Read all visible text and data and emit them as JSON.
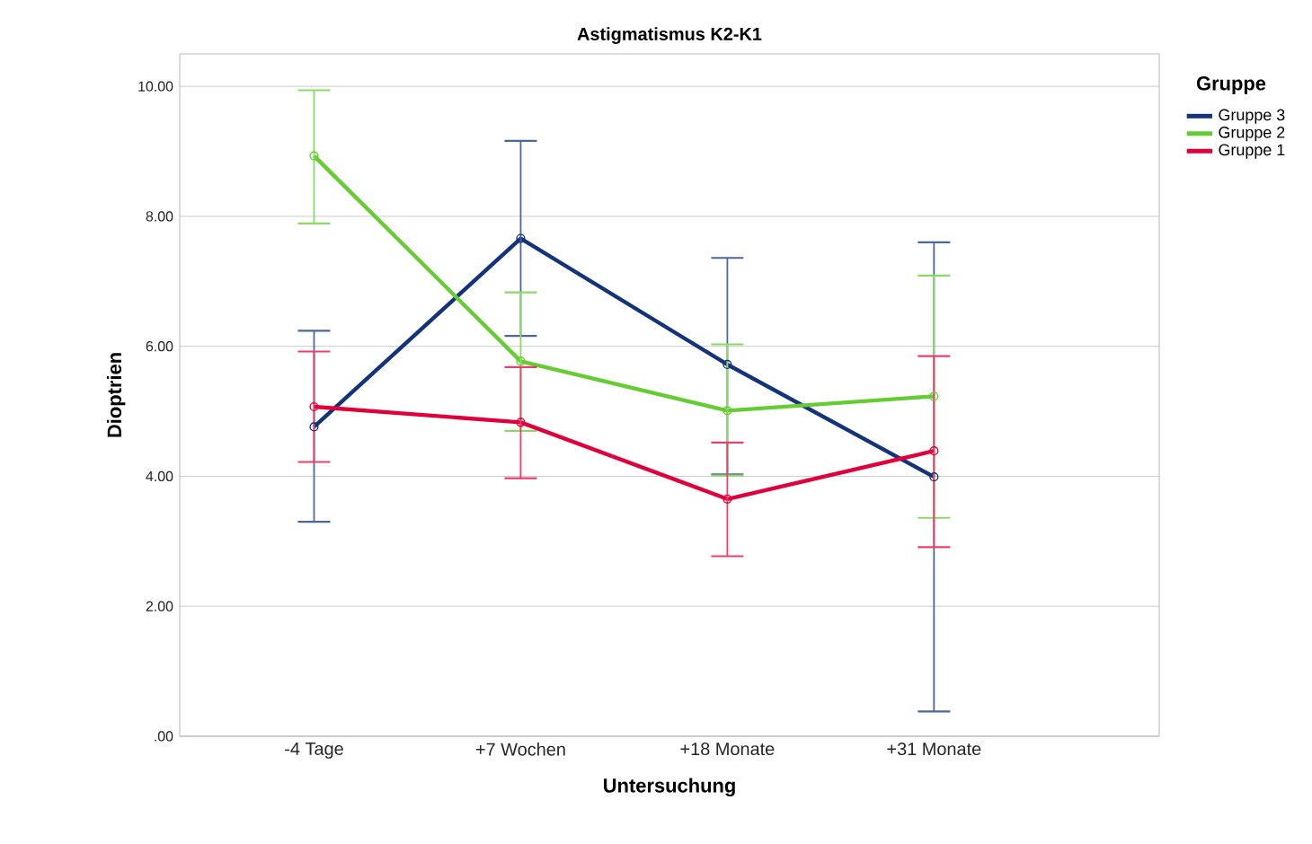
{
  "chart_data": {
    "type": "line",
    "title": "Astigmatismus K2-K1",
    "xlabel": "Untersuchung",
    "ylabel": "Dioptrien",
    "legend_title": "Gruppe",
    "categories": [
      "-4 Tage",
      "+7 Wochen",
      "+18 Monate",
      "+31 Monate"
    ],
    "series": [
      {
        "name": "Gruppe 3",
        "color": "#14337a",
        "values": [
          4.76,
          7.66,
          5.72,
          3.99
        ],
        "errors": [
          [
            3.3,
            6.24
          ],
          [
            6.16,
            9.16
          ],
          [
            4.03,
            7.36
          ],
          [
            0.38,
            7.6
          ]
        ]
      },
      {
        "name": "Gruppe 2",
        "color": "#66cc33",
        "values": [
          8.93,
          5.77,
          5.01,
          5.23
        ],
        "errors": [
          [
            7.89,
            9.94
          ],
          [
            4.7,
            6.83
          ],
          [
            4.01,
            6.03
          ],
          [
            3.36,
            7.09
          ]
        ]
      },
      {
        "name": "Gruppe 1",
        "color": "#e0003c",
        "values": [
          5.07,
          4.83,
          3.65,
          4.39
        ],
        "errors": [
          [
            4.22,
            5.92
          ],
          [
            3.97,
            5.68
          ],
          [
            2.77,
            4.52
          ],
          [
            2.91,
            5.85
          ]
        ]
      }
    ],
    "ylim": [
      0,
      10.5
    ],
    "yticks": [
      {
        "value": 0,
        "label": ".00"
      },
      {
        "value": 2,
        "label": "2.00"
      },
      {
        "value": 4,
        "label": "4.00"
      },
      {
        "value": 6,
        "label": "6.00"
      },
      {
        "value": 8,
        "label": "8.00"
      },
      {
        "value": 10,
        "label": "10.00"
      }
    ],
    "grid": "y",
    "legend": "right",
    "marker": "circle",
    "line_style": "solid"
  }
}
